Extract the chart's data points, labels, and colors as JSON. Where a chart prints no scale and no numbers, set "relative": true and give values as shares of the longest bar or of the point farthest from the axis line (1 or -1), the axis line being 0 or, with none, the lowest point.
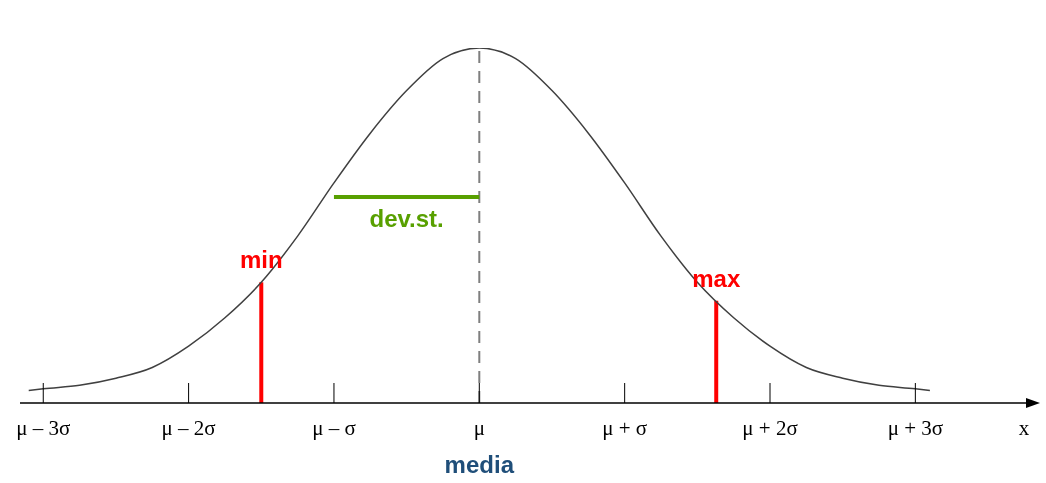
{
  "chart_data": {
    "type": "line",
    "relative": true,
    "xlabel": "x",
    "xlim": [
      -3.16,
      3.83
    ],
    "xticks": [
      {
        "value": -3,
        "label": "μ – 3σ"
      },
      {
        "value": -2,
        "label": "μ – 2σ"
      },
      {
        "value": -1,
        "label": "μ – σ"
      },
      {
        "value": 0,
        "label": "μ"
      },
      {
        "value": 1,
        "label": "μ + σ"
      },
      {
        "value": 2,
        "label": "μ + 2σ"
      },
      {
        "value": 3,
        "label": "μ + 3σ"
      }
    ],
    "series": [
      {
        "color": "#404040",
        "x": [
          -3.1,
          -3,
          -2.75,
          -2.5,
          -2.25,
          -2,
          -1.75,
          -1.5,
          -1.25,
          -1,
          -0.75,
          -0.5,
          -0.25,
          0,
          0.25,
          0.5,
          0.75,
          1,
          1.25,
          1.5,
          1.75,
          2,
          2.25,
          2.5,
          2.75,
          3,
          3.1
        ],
        "values": [
          0.035,
          0.04,
          0.05,
          0.07,
          0.1,
          0.16,
          0.24,
          0.34,
          0.47,
          0.62,
          0.76,
          0.88,
          0.97,
          1,
          0.97,
          0.88,
          0.76,
          0.62,
          0.47,
          0.34,
          0.24,
          0.16,
          0.1,
          0.07,
          0.05,
          0.04,
          0.035
        ]
      },
      {
        "color": "#58a000",
        "x": [
          -1,
          0
        ],
        "values": [
          0.58,
          0.58
        ]
      }
    ],
    "ref_lines": [
      {
        "axis": "x",
        "value": 0,
        "color": "#7f7f7f",
        "line_style": "dashed"
      },
      {
        "axis": "x",
        "value": -1.5,
        "label": "min",
        "color": "#ff0000",
        "line_style": "solid"
      },
      {
        "axis": "x",
        "value": 1.63,
        "label": "max",
        "color": "#ff0000",
        "line_style": "solid"
      }
    ],
    "annotations": [
      {
        "text": "dev.st.",
        "x": -0.5,
        "y": 0.58
      },
      "media"
    ]
  }
}
